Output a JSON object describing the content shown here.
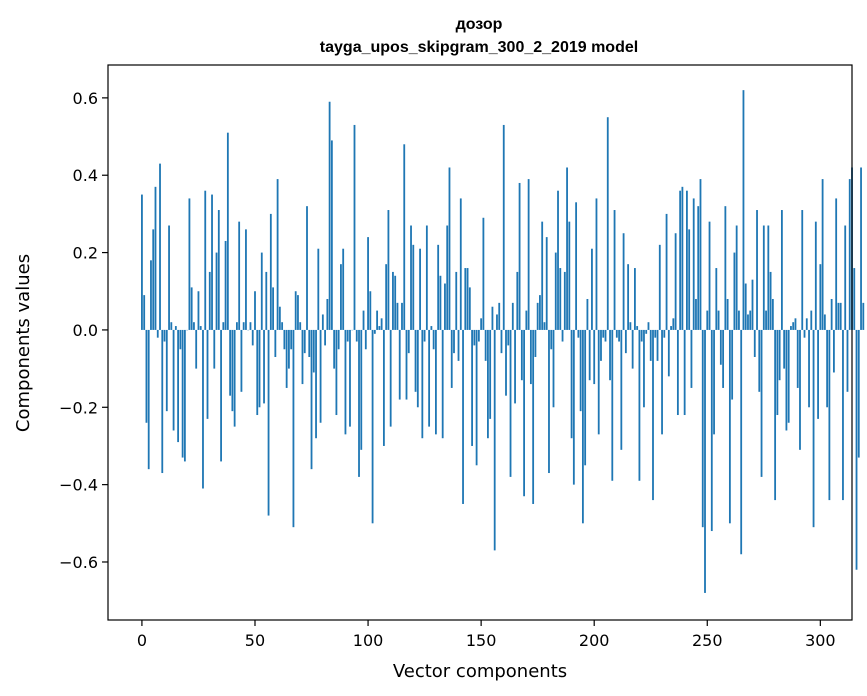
{
  "chart_data": {
    "type": "bar",
    "title": "дозор",
    "subtitle": "tayga_upos_skipgram_300_2_2019 model",
    "xlabel": "Vector components",
    "ylabel": "Components values",
    "xlim": [
      -15,
      314
    ],
    "ylim": [
      -0.75,
      0.685
    ],
    "xticks": [
      0,
      50,
      100,
      150,
      200,
      250,
      300
    ],
    "yticks": [
      -0.6,
      -0.4,
      -0.2,
      0.0,
      0.2,
      0.4,
      0.6
    ],
    "xtick_labels": [
      "0",
      "50",
      "100",
      "150",
      "200",
      "250",
      "300"
    ],
    "ytick_labels": [
      "−0.6",
      "−0.4",
      "−0.2",
      "0.0",
      "0.2",
      "0.4",
      "0.6"
    ],
    "grid": false,
    "bar_color": "#1f77b4",
    "values": [
      0.35,
      0.09,
      -0.24,
      -0.36,
      0.18,
      0.26,
      0.37,
      -0.02,
      0.43,
      -0.37,
      -0.03,
      -0.21,
      0.27,
      0.02,
      -0.26,
      0.01,
      -0.29,
      -0.05,
      -0.33,
      -0.34,
      0.0,
      0.34,
      0.11,
      0.02,
      -0.1,
      0.1,
      0.01,
      -0.41,
      0.36,
      -0.23,
      0.15,
      0.35,
      -0.1,
      0.2,
      0.31,
      -0.34,
      0.02,
      0.23,
      0.51,
      -0.17,
      -0.21,
      -0.25,
      0.02,
      0.28,
      -0.16,
      0.02,
      0.26,
      0.0,
      0.02,
      -0.04,
      0.1,
      -0.22,
      -0.2,
      0.2,
      -0.19,
      0.15,
      -0.48,
      0.3,
      0.11,
      -0.07,
      0.39,
      0.06,
      0.02,
      -0.05,
      -0.15,
      -0.1,
      -0.05,
      -0.51,
      0.1,
      0.09,
      0.02,
      -0.14,
      -0.06,
      0.32,
      -0.07,
      -0.36,
      -0.11,
      -0.28,
      0.21,
      -0.24,
      0.04,
      -0.04,
      0.08,
      0.59,
      0.49,
      -0.1,
      -0.22,
      -0.05,
      0.17,
      0.21,
      -0.27,
      -0.03,
      -0.25,
      0.0,
      0.53,
      -0.03,
      -0.38,
      -0.31,
      0.05,
      -0.05,
      0.24,
      0.1,
      -0.5,
      -0.01,
      0.05,
      0.01,
      0.03,
      -0.3,
      0.17,
      0.31,
      -0.25,
      0.15,
      0.14,
      0.07,
      -0.18,
      0.07,
      0.48,
      -0.18,
      -0.06,
      0.27,
      0.22,
      -0.16,
      -0.2,
      0.21,
      -0.28,
      -0.03,
      0.27,
      -0.25,
      0.01,
      -0.05,
      -0.27,
      0.22,
      0.14,
      -0.28,
      0.12,
      0.27,
      0.42,
      -0.15,
      -0.06,
      0.15,
      -0.08,
      0.34,
      -0.45,
      0.16,
      0.16,
      0.11,
      -0.3,
      -0.04,
      -0.35,
      -0.03,
      0.03,
      0.29,
      -0.08,
      -0.28,
      -0.23,
      0.06,
      -0.57,
      0.04,
      0.07,
      -0.06,
      0.53,
      -0.17,
      -0.04,
      -0.38,
      0.07,
      -0.19,
      0.15,
      0.38,
      -0.13,
      -0.43,
      0.05,
      0.39,
      -0.14,
      -0.45,
      -0.07,
      0.07,
      0.09,
      0.28,
      0.02,
      0.24,
      -0.37,
      -0.05,
      -0.2,
      0.2,
      0.36,
      0.16,
      -0.03,
      0.15,
      0.42,
      0.28,
      -0.28,
      -0.4,
      0.33,
      -0.02,
      -0.21,
      -0.5,
      -0.35,
      0.08,
      -0.13,
      0.21,
      -0.14,
      0.34,
      -0.27,
      -0.08,
      -0.02,
      -0.03,
      0.55,
      -0.13,
      -0.39,
      0.31,
      -0.02,
      -0.03,
      -0.31,
      0.25,
      -0.06,
      0.17,
      0.02,
      -0.1,
      0.16,
      0.01,
      -0.39,
      -0.03,
      -0.2,
      -0.01,
      0.02,
      -0.08,
      -0.44,
      -0.02,
      -0.08,
      0.22,
      -0.27,
      -0.02,
      0.3,
      -0.12,
      0.01,
      0.03,
      0.25,
      -0.22,
      0.36,
      0.37,
      -0.22,
      0.36,
      0.26,
      -0.15,
      0.34,
      0.08,
      0.32,
      0.39,
      -0.51,
      -0.68,
      0.05,
      0.28,
      -0.52,
      -0.27,
      0.16,
      0.05,
      -0.09,
      -0.15,
      0.32,
      0.08,
      -0.5,
      -0.18,
      0.2,
      0.27,
      0.05,
      -0.58,
      0.62,
      0.12,
      0.04,
      0.05,
      0.13,
      -0.07,
      0.31,
      -0.16,
      -0.38,
      0.27,
      0.05,
      0.27,
      0.15,
      0.08,
      -0.44,
      -0.22,
      -0.13,
      0.31,
      -0.1,
      -0.26,
      -0.24,
      0.01,
      0.02,
      0.03,
      -0.15,
      -0.31,
      0.31,
      -0.02,
      0.03,
      -0.2,
      0.05,
      -0.51,
      0.28,
      -0.23,
      0.17,
      0.39,
      0.04,
      -0.2,
      -0.44,
      0.08,
      -0.11,
      0.34,
      0.07,
      0.07,
      -0.44,
      0.27,
      -0.16,
      0.39,
      0.42,
      0.16,
      -0.62,
      -0.33,
      0.42,
      0.07
    ]
  }
}
